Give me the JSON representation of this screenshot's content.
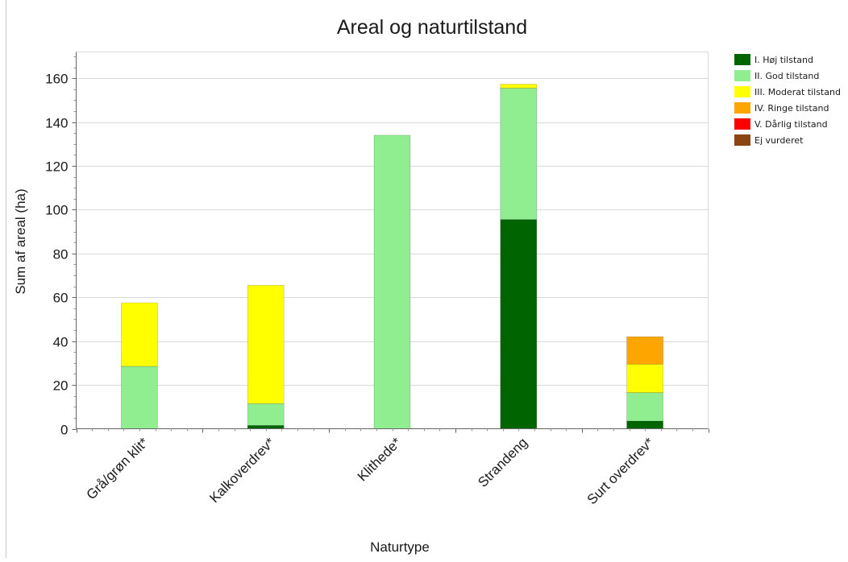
{
  "chart_data": {
    "type": "bar",
    "stacked": true,
    "title": "Areal og naturtilstand",
    "xlabel": "Naturtype",
    "ylabel": "Sum af areal (ha)",
    "ylim": [
      0,
      172
    ],
    "yticks": [
      0,
      20,
      40,
      60,
      80,
      100,
      120,
      140,
      160
    ],
    "grid": true,
    "legend_position": "top-right",
    "categories": [
      "Grå/grøn klit*",
      "Kalkoverdrev*",
      "Klithede*",
      "Strandeng",
      "Surt overdrev*"
    ],
    "series": [
      {
        "name": "I. Høj tilstand",
        "color": "#006400",
        "values": [
          0,
          1.5,
          0,
          95.5,
          3.5
        ]
      },
      {
        "name": "II. God tilstand",
        "color": "#90ee90",
        "values": [
          28.5,
          10,
          134,
          60,
          13
        ]
      },
      {
        "name": "III. Moderat tilstand",
        "color": "#ffff00",
        "values": [
          29,
          54,
          0,
          1.8,
          13
        ]
      },
      {
        "name": "IV. Ringe tilstand",
        "color": "#ffa500",
        "values": [
          0,
          0,
          0,
          0,
          12.5
        ]
      },
      {
        "name": "V. Dårlig tilstand",
        "color": "#ff0000",
        "values": [
          0,
          0,
          0,
          0,
          0
        ]
      },
      {
        "name": "Ej vurderet",
        "color": "#8b4513",
        "values": [
          0,
          0,
          0,
          0,
          0
        ]
      }
    ]
  }
}
